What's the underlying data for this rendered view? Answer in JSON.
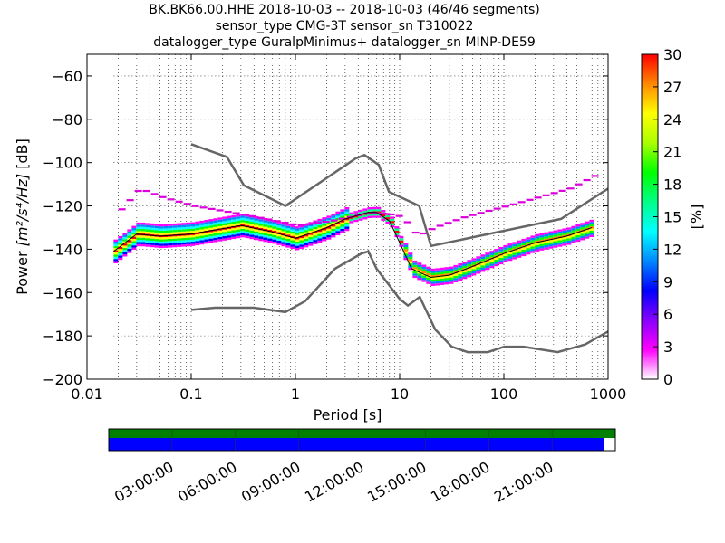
{
  "title_lines": [
    "BK.BK66.00.HHE   2018-10-03 -- 2018-10-03  (46/46 segments)",
    "sensor_type CMG-3T sensor_sn T310022",
    "datalogger_type GuralpMinimus+ datalogger_sn MINP-DE59"
  ],
  "chart_data": {
    "type": "heatmap",
    "xlabel": "Period [s]",
    "ylabel_text": "Power ",
    "ylabel_units": "[m²/s⁴/Hz]",
    "ylabel_suffix": " [dB]",
    "x_scale": "log",
    "xlim": [
      0.01,
      1000
    ],
    "ylim": [
      -200,
      -50
    ],
    "x_ticks": [
      0.01,
      0.1,
      1,
      10,
      100,
      1000
    ],
    "x_tick_labels": [
      "0.01",
      "0.1",
      "1",
      "10",
      "100",
      "1000"
    ],
    "y_ticks": [
      -200,
      -180,
      -160,
      -140,
      -120,
      -100,
      -80,
      -60
    ],
    "y_tick_labels": [
      "−200",
      "−180",
      "−160",
      "−140",
      "−120",
      "−100",
      "−80",
      "−60"
    ],
    "grid": "dotted",
    "colorbar": {
      "label": "[%]",
      "min": 0,
      "max": 30,
      "ticks": [
        0,
        3,
        6,
        9,
        12,
        15,
        18,
        21,
        24,
        27,
        30
      ],
      "tick_labels": [
        "0",
        "3",
        "6",
        "9",
        "12",
        "15",
        "18",
        "21",
        "24",
        "27",
        "30"
      ],
      "colors": [
        "#ffffff",
        "#ff00ff",
        "#8800ff",
        "#0000ff",
        "#0088ff",
        "#00ffff",
        "#00ff88",
        "#00ff00",
        "#aaff00",
        "#ffff00",
        "#ff8800",
        "#ff0000"
      ]
    },
    "nlnm": {
      "color": "#666666",
      "x": [
        0.1,
        0.17,
        0.4,
        0.8,
        1.24,
        2.4,
        4.3,
        5,
        6,
        10,
        12,
        15.6,
        21.9,
        31.6,
        45,
        70,
        101,
        154,
        328,
        600,
        1000
      ],
      "y": [
        -168,
        -167,
        -167,
        -169,
        -164,
        -149,
        -142,
        -141,
        -149,
        -163,
        -166,
        -162,
        -177,
        -185,
        -187.5,
        -187.5,
        -185,
        -185,
        -187.5,
        -184,
        -178
      ]
    },
    "nhnm": {
      "color": "#666666",
      "x": [
        0.1,
        0.22,
        0.32,
        0.8,
        3.8,
        4.6,
        6.3,
        7.9,
        15.4,
        20,
        354,
        1000
      ],
      "y": [
        -91.5,
        -97.4,
        -110.5,
        -120,
        -98,
        -96.5,
        -101,
        -113.5,
        -120,
        -138.5,
        -126,
        -112
      ]
    },
    "psd_percentile_curves": [
      {
        "name": "mean",
        "color": "#000000",
        "x": [
          0.018,
          0.03,
          0.05,
          0.1,
          0.3,
          0.6,
          1,
          2,
          3,
          5,
          6,
          8,
          10,
          13,
          16,
          20,
          30,
          50,
          100,
          200,
          400,
          700
        ],
        "y": [
          -141,
          -133,
          -134,
          -133,
          -129,
          -132,
          -135,
          -130,
          -126,
          -123,
          -123,
          -127,
          -137,
          -149,
          -151,
          -153,
          -152,
          -148,
          -142,
          -137,
          -134,
          -130
        ]
      },
      {
        "name": "high_mode",
        "color": "#cc00cc",
        "x": [
          0.018,
          0.03,
          0.05,
          0.1,
          0.3,
          1,
          2,
          5,
          8,
          10,
          14,
          20,
          40,
          100,
          200,
          400,
          700
        ],
        "y": [
          -124,
          -112,
          -116,
          -120,
          -124,
          -129,
          -127,
          -123,
          -124,
          -125,
          -134,
          -130,
          -125,
          -120,
          -116,
          -112,
          -106
        ]
      }
    ],
    "availability": {
      "time_labels": [
        "03:00:00",
        "06:00:00",
        "09:00:00",
        "12:00:00",
        "15:00:00",
        "18:00:00",
        "21:00:00"
      ],
      "top_bar_color": "#008000",
      "bottom_bar_color": "#0000ff",
      "bottom_bar_fraction": 0.977
    }
  }
}
